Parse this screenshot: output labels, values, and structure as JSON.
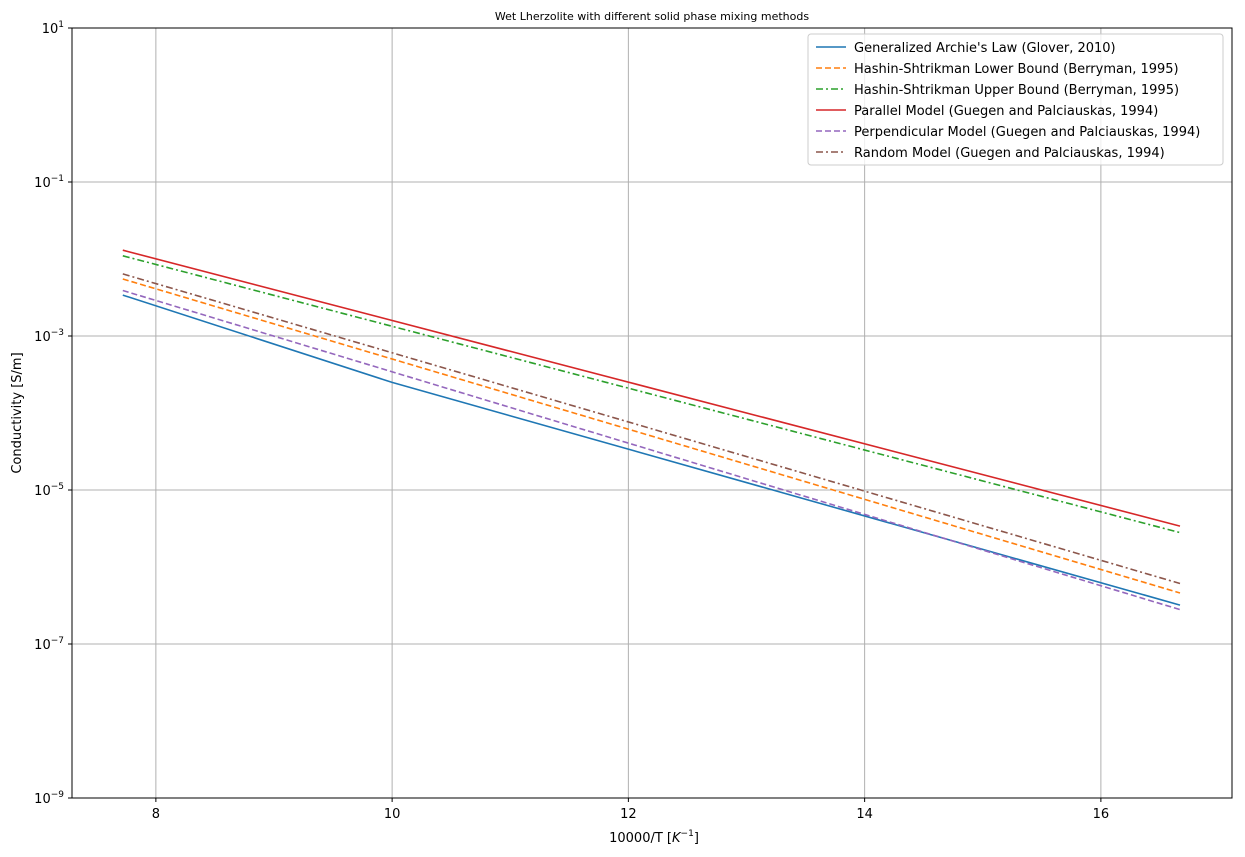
{
  "chart_data": {
    "type": "line",
    "title": "Wet Lherzolite with different solid phase mixing methods",
    "xlabel_main": "10000/T [",
    "xlabel_unit_base": "K",
    "xlabel_unit_exp": "−1",
    "xlabel_close": "]",
    "ylabel": "Conductivity [S/m]",
    "x_scale": "linear",
    "y_scale": "log",
    "xlim": [
      7.29,
      17.11
    ],
    "ylim": [
      1e-09,
      10
    ],
    "x_ticks": [
      8,
      10,
      12,
      14,
      16
    ],
    "x_tick_labels": [
      "8",
      "10",
      "12",
      "14",
      "16"
    ],
    "y_ticks": [
      1e-09,
      1e-07,
      1e-05,
      0.001,
      0.1,
      10
    ],
    "y_tick_labels": [
      {
        "base": "10",
        "exp": "−9"
      },
      {
        "base": "10",
        "exp": "−7"
      },
      {
        "base": "10",
        "exp": "−5"
      },
      {
        "base": "10",
        "exp": "−3"
      },
      {
        "base": "10",
        "exp": "−1"
      },
      {
        "base": "10",
        "exp": "1"
      }
    ],
    "grid": true,
    "legend_position": "top-right",
    "series": [
      {
        "name": "Generalized Archie's Law (Glover, 2010)",
        "color": "#1f77b4",
        "style": "solid",
        "x": [
          7.72,
          10.0,
          16.67
        ],
        "y": [
          0.0034,
          0.00025,
          3.2e-07
        ]
      },
      {
        "name": "Hashin-Shtrikman Lower Bound (Berryman, 1995)",
        "color": "#ff7f0e",
        "style": "dashed",
        "x": [
          7.72,
          16.67
        ],
        "y": [
          0.0055,
          4.6e-07
        ]
      },
      {
        "name": "Hashin-Shtrikman Upper Bound (Berryman, 1995)",
        "color": "#2ca02c",
        "style": "dashdot",
        "x": [
          7.72,
          16.67
        ],
        "y": [
          0.011,
          2.8e-06
        ]
      },
      {
        "name": "Parallel Model (Guegen and Palciauskas, 1994)",
        "color": "#d62728",
        "style": "solid",
        "x": [
          7.72,
          16.67
        ],
        "y": [
          0.013,
          3.4e-06
        ]
      },
      {
        "name": "Perpendicular Model (Guegen and Palciauskas, 1994)",
        "color": "#9467bd",
        "style": "dashed",
        "x": [
          7.72,
          16.67
        ],
        "y": [
          0.0039,
          2.8e-07
        ]
      },
      {
        "name": "Random Model (Guegen and Palciauskas, 1994)",
        "color": "#8c564b",
        "style": "dashdot",
        "x": [
          7.72,
          16.67
        ],
        "y": [
          0.0064,
          6.1e-07
        ]
      }
    ]
  }
}
